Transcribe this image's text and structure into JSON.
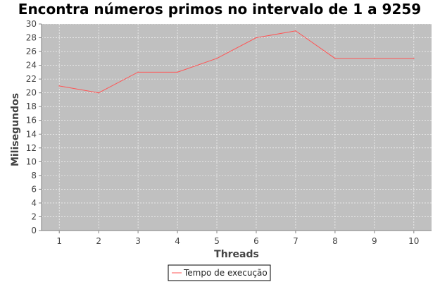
{
  "chart_data": {
    "type": "line",
    "title": "Encontra números primos no intervalo de 1 a 9259",
    "xlabel": "Threads",
    "ylabel": "Milisegundos",
    "x": [
      1,
      2,
      3,
      4,
      5,
      6,
      7,
      8,
      9,
      10
    ],
    "xlim": [
      0.55,
      10.45
    ],
    "ylim": [
      0,
      30
    ],
    "yticks": [
      0,
      2,
      4,
      6,
      8,
      10,
      12,
      14,
      16,
      18,
      20,
      22,
      24,
      26,
      28,
      30
    ],
    "grid": true,
    "legend_position": "bottom",
    "series": [
      {
        "name": "Tempo de execução",
        "color": "#ff5555",
        "values": [
          21,
          20,
          23,
          23,
          25,
          28,
          29,
          25,
          25,
          25
        ]
      }
    ],
    "colors": {
      "plot_background": "#c0c0c0",
      "grid": "#ffffff",
      "axis": "#808080"
    }
  }
}
